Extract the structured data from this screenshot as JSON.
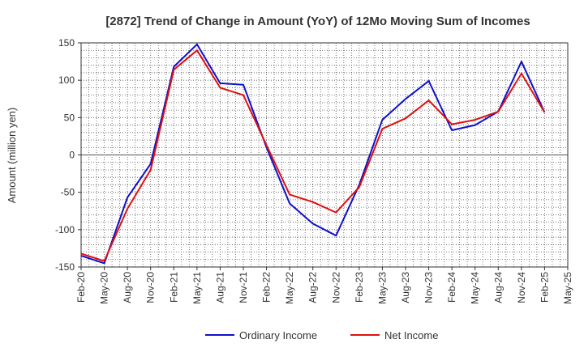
{
  "chart_data": {
    "type": "line",
    "title": "[2872]  Trend of Change in Amount (YoY) of 12Mo Moving Sum of Incomes",
    "ylabel": "Amount (million yen)",
    "xlabel": "",
    "ylim": [
      -150,
      150
    ],
    "yticks": [
      150,
      100,
      50,
      0,
      -50,
      -100,
      -150
    ],
    "x": [
      "Feb-20",
      "May-20",
      "Aug-20",
      "Nov-20",
      "Feb-21",
      "May-21",
      "Aug-21",
      "Nov-21",
      "Feb-22",
      "May-22",
      "Aug-22",
      "Nov-22",
      "Feb-23",
      "May-23",
      "Aug-23",
      "Nov-23",
      "Feb-24",
      "May-24",
      "Aug-24",
      "Nov-24",
      "Feb-25",
      "May-25"
    ],
    "grid": true,
    "legend_position": "bottom",
    "series": [
      {
        "name": "Ordinary Income",
        "color": "#1010cc",
        "values": [
          -135,
          -145,
          -57,
          -12,
          118,
          148,
          96,
          94,
          10,
          -65,
          -92,
          -108,
          -40,
          47,
          75,
          99,
          33,
          40,
          58,
          125,
          57,
          null
        ]
      },
      {
        "name": "Net Income",
        "color": "#e01010",
        "values": [
          -132,
          -142,
          -72,
          -20,
          114,
          140,
          90,
          80,
          13,
          -53,
          -63,
          -77,
          -43,
          35,
          49,
          73,
          41,
          47,
          58,
          109,
          57,
          null
        ]
      }
    ]
  }
}
